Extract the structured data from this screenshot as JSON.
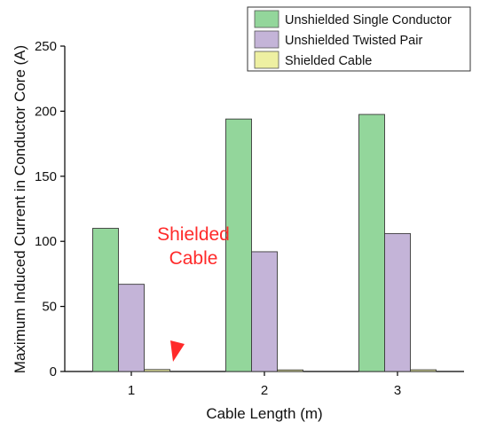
{
  "chart_data": {
    "type": "bar",
    "categories": [
      "1",
      "2",
      "3"
    ],
    "xlabel": "Cable Length (m)",
    "ylabel": "Maximum Induced Current in Conductor Core (A)",
    "ylim": [
      0,
      250
    ],
    "yticks": [
      0,
      50,
      100,
      150,
      200,
      250
    ],
    "series": [
      {
        "name": "Unshielded Single Conductor",
        "values": [
          110,
          194,
          197.5
        ],
        "color": "#93d69b"
      },
      {
        "name": "Unshielded Twisted Pair",
        "values": [
          67,
          92,
          106
        ],
        "color": "#c4b4d8"
      },
      {
        "name": "Shielded Cable",
        "values": [
          1.5,
          1.2,
          1.3
        ],
        "color": "#eef0a2"
      }
    ],
    "legend_position": "top-right",
    "grid": false,
    "annotation": {
      "lines": [
        "Shielded",
        "Cable"
      ],
      "color": "#ff2a2a"
    }
  }
}
